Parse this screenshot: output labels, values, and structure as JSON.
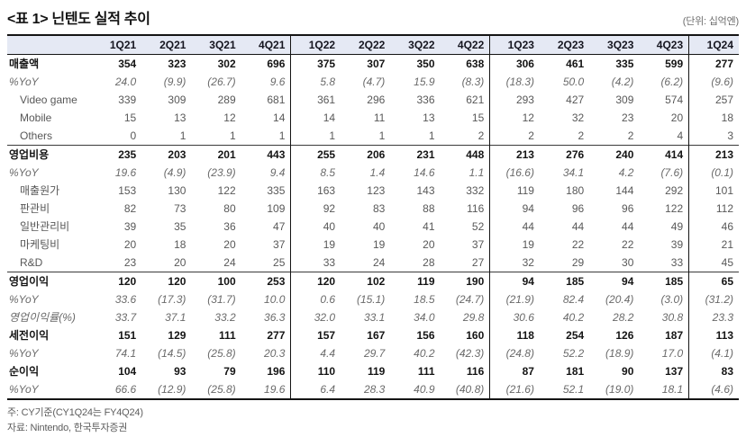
{
  "title": "<표 1> 닌텐도 실적 추이",
  "unit_label": "(단위: 십억엔)",
  "table": {
    "columns": [
      "1Q21",
      "2Q21",
      "3Q21",
      "4Q21",
      "1Q22",
      "2Q22",
      "3Q22",
      "4Q22",
      "1Q23",
      "2Q23",
      "3Q23",
      "4Q23",
      "1Q24"
    ],
    "group_dividers_after": [
      3,
      7,
      11
    ],
    "rows": [
      {
        "label": "매출액",
        "style": "section",
        "divider_above": false,
        "values": [
          "354",
          "323",
          "302",
          "696",
          "375",
          "307",
          "350",
          "638",
          "306",
          "461",
          "335",
          "599",
          "277"
        ]
      },
      {
        "label": "%YoY",
        "style": "yoy",
        "divider_above": false,
        "values": [
          "24.0",
          "(9.9)",
          "(26.7)",
          "9.6",
          "5.8",
          "(4.7)",
          "15.9",
          "(8.3)",
          "(18.3)",
          "50.0",
          "(4.2)",
          "(6.2)",
          "(9.6)"
        ]
      },
      {
        "label": "Video game",
        "style": "sub",
        "divider_above": false,
        "values": [
          "339",
          "309",
          "289",
          "681",
          "361",
          "296",
          "336",
          "621",
          "293",
          "427",
          "309",
          "574",
          "257"
        ]
      },
      {
        "label": "Mobile",
        "style": "sub",
        "divider_above": false,
        "values": [
          "15",
          "13",
          "12",
          "14",
          "14",
          "11",
          "13",
          "15",
          "12",
          "32",
          "23",
          "20",
          "18"
        ]
      },
      {
        "label": "Others",
        "style": "sub",
        "divider_above": false,
        "values": [
          "0",
          "1",
          "1",
          "1",
          "1",
          "1",
          "1",
          "2",
          "2",
          "2",
          "2",
          "4",
          "3"
        ]
      },
      {
        "label": "영업비용",
        "style": "section",
        "divider_above": true,
        "values": [
          "235",
          "203",
          "201",
          "443",
          "255",
          "206",
          "231",
          "448",
          "213",
          "276",
          "240",
          "414",
          "213"
        ]
      },
      {
        "label": "%YoY",
        "style": "yoy",
        "divider_above": false,
        "values": [
          "19.6",
          "(4.9)",
          "(23.9)",
          "9.4",
          "8.5",
          "1.4",
          "14.6",
          "1.1",
          "(16.6)",
          "34.1",
          "4.2",
          "(7.6)",
          "(0.1)"
        ]
      },
      {
        "label": "매출원가",
        "style": "sub",
        "divider_above": false,
        "values": [
          "153",
          "130",
          "122",
          "335",
          "163",
          "123",
          "143",
          "332",
          "119",
          "180",
          "144",
          "292",
          "101"
        ]
      },
      {
        "label": "판관비",
        "style": "sub",
        "divider_above": false,
        "values": [
          "82",
          "73",
          "80",
          "109",
          "92",
          "83",
          "88",
          "116",
          "94",
          "96",
          "96",
          "122",
          "112"
        ]
      },
      {
        "label": "일반관리비",
        "style": "sub",
        "divider_above": false,
        "values": [
          "39",
          "35",
          "36",
          "47",
          "40",
          "40",
          "41",
          "52",
          "44",
          "44",
          "44",
          "49",
          "46"
        ]
      },
      {
        "label": "마케팅비",
        "style": "sub",
        "divider_above": false,
        "values": [
          "20",
          "18",
          "20",
          "37",
          "19",
          "19",
          "20",
          "37",
          "19",
          "22",
          "22",
          "39",
          "21"
        ]
      },
      {
        "label": "R&D",
        "style": "sub",
        "divider_above": false,
        "values": [
          "23",
          "20",
          "24",
          "25",
          "33",
          "24",
          "28",
          "27",
          "32",
          "29",
          "30",
          "33",
          "45"
        ]
      },
      {
        "label": "영업이익",
        "style": "section",
        "divider_above": true,
        "values": [
          "120",
          "120",
          "100",
          "253",
          "120",
          "102",
          "119",
          "190",
          "94",
          "185",
          "94",
          "185",
          "65"
        ]
      },
      {
        "label": "%YoY",
        "style": "yoy",
        "divider_above": false,
        "values": [
          "33.6",
          "(17.3)",
          "(31.7)",
          "10.0",
          "0.6",
          "(15.1)",
          "18.5",
          "(24.7)",
          "(21.9)",
          "82.4",
          "(20.4)",
          "(3.0)",
          "(31.2)"
        ]
      },
      {
        "label": "영업이익률(%)",
        "style": "yoy",
        "divider_above": false,
        "values": [
          "33.7",
          "37.1",
          "33.2",
          "36.3",
          "32.0",
          "33.1",
          "34.0",
          "29.8",
          "30.6",
          "40.2",
          "28.2",
          "30.8",
          "23.3"
        ]
      },
      {
        "label": "세전이익",
        "style": "section",
        "divider_above": false,
        "values": [
          "151",
          "129",
          "111",
          "277",
          "157",
          "167",
          "156",
          "160",
          "118",
          "254",
          "126",
          "187",
          "113"
        ]
      },
      {
        "label": "%YoY",
        "style": "yoy",
        "divider_above": false,
        "values": [
          "74.1",
          "(14.5)",
          "(25.8)",
          "20.3",
          "4.4",
          "29.7",
          "40.2",
          "(42.3)",
          "(24.8)",
          "52.2",
          "(18.9)",
          "17.0",
          "(4.1)"
        ]
      },
      {
        "label": "순이익",
        "style": "section",
        "divider_above": false,
        "values": [
          "104",
          "93",
          "79",
          "196",
          "110",
          "119",
          "111",
          "116",
          "87",
          "181",
          "90",
          "137",
          "83"
        ]
      },
      {
        "label": "%YoY",
        "style": "yoy",
        "divider_above": false,
        "values": [
          "66.6",
          "(12.9)",
          "(25.8)",
          "19.6",
          "6.4",
          "28.3",
          "40.9",
          "(40.8)",
          "(21.6)",
          "52.1",
          "(19.0)",
          "18.1",
          "(4.6)"
        ]
      }
    ]
  },
  "footnotes": [
    "주: CY기준(CY1Q24는 FY4Q24)",
    "자료: Nintendo, 한국투자증권"
  ],
  "colors": {
    "header_bg": "#e5e9f4",
    "border_dark": "#141414",
    "section_text": "#141414",
    "muted_text": "#5d5d5d"
  }
}
